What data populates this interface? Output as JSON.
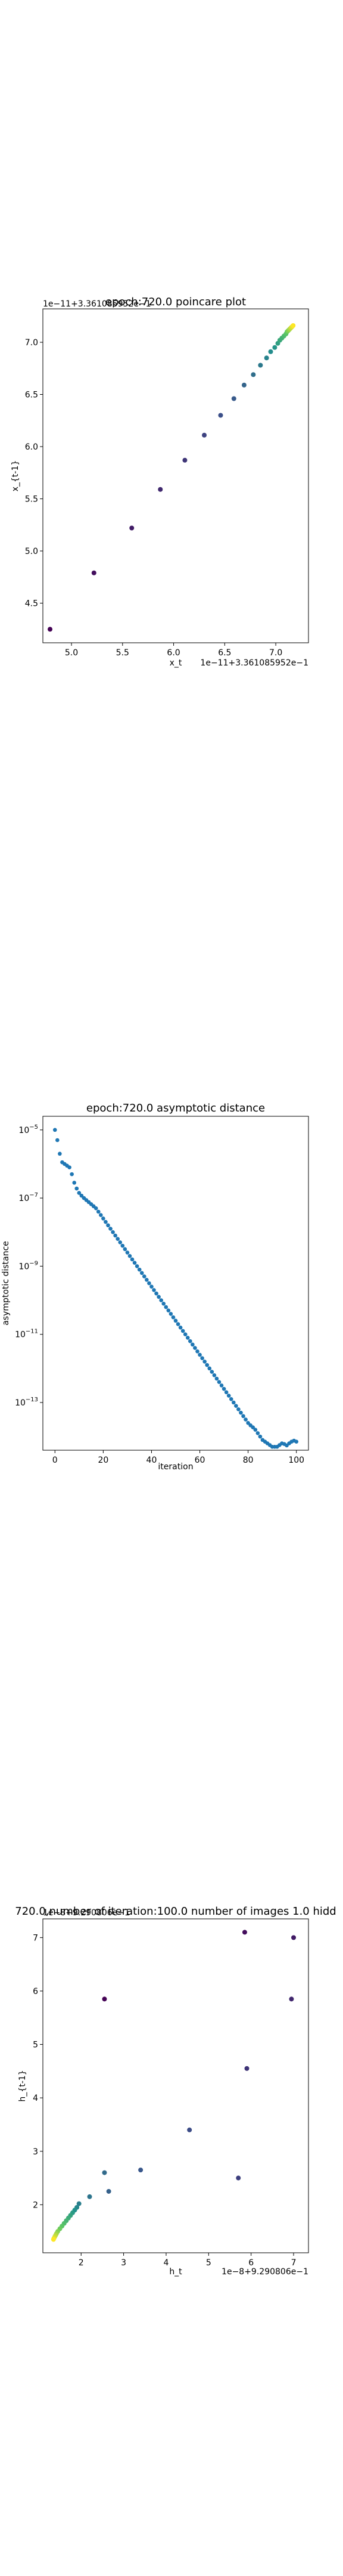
{
  "chart_data": [
    {
      "type": "scatter",
      "title": "epoch:720.0 poincare plot",
      "xlabel": "x_t",
      "ylabel": "x_{t-1}",
      "x_offset_text": "1e−11+3.361085952e−1",
      "y_offset_text": "1e−11+3.361085952e−1",
      "x_ticks": [
        "5.0",
        "5.5",
        "6.0",
        "6.5",
        "7.0"
      ],
      "y_ticks": [
        "4.5",
        "5.0",
        "5.5",
        "6.0",
        "6.5",
        "7.0"
      ],
      "xlim": [
        4.72,
        7.32
      ],
      "ylim": [
        4.12,
        7.32
      ],
      "color_scale": "viridis (by iteration)",
      "x": [
        4.79,
        5.22,
        5.59,
        5.87,
        6.11,
        6.3,
        6.46,
        6.59,
        6.69,
        6.78,
        6.85,
        6.91,
        6.95,
        6.99,
        7.02,
        7.04,
        7.06,
        7.08,
        7.1,
        7.11,
        7.12,
        7.13,
        7.14,
        7.15,
        7.16,
        7.17
      ],
      "y": [
        4.25,
        4.79,
        5.22,
        5.59,
        5.87,
        6.11,
        6.3,
        6.46,
        6.59,
        6.69,
        6.78,
        6.85,
        6.91,
        6.95,
        6.99,
        7.02,
        7.04,
        7.06,
        7.08,
        7.1,
        7.11,
        7.12,
        7.13,
        7.14,
        7.15,
        7.16
      ]
    },
    {
      "type": "scatter",
      "title": "epoch:720.0 asymptotic distance",
      "xlabel": "iteration",
      "ylabel": "asymptotic distance",
      "yscale": "log",
      "x_ticks": [
        "0",
        "20",
        "40",
        "60",
        "80",
        "100"
      ],
      "y_ticks": [
        "10^-5",
        "10^-7",
        "10^-9",
        "10^-11",
        "10^-13"
      ],
      "xlim": [
        -5,
        105
      ],
      "ylim_exp": [
        -14.4,
        -4.6
      ],
      "color": "#1f77b4",
      "x_start": 0,
      "log10_y": [
        -5.0,
        -5.3,
        -5.7,
        -5.95,
        -6.0,
        -6.05,
        -6.1,
        -6.3,
        -6.55,
        -6.72,
        -6.85,
        -6.93,
        -7.0,
        -7.06,
        -7.12,
        -7.18,
        -7.24,
        -7.3,
        -7.4,
        -7.5,
        -7.6,
        -7.7,
        -7.8,
        -7.9,
        -8.0,
        -8.1,
        -8.2,
        -8.3,
        -8.4,
        -8.5,
        -8.6,
        -8.7,
        -8.8,
        -8.9,
        -9.0,
        -9.1,
        -9.2,
        -9.3,
        -9.4,
        -9.5,
        -9.6,
        -9.7,
        -9.8,
        -9.9,
        -10.0,
        -10.1,
        -10.2,
        -10.3,
        -10.4,
        -10.5,
        -10.6,
        -10.7,
        -10.8,
        -10.9,
        -11.0,
        -11.1,
        -11.2,
        -11.3,
        -11.4,
        -11.5,
        -11.6,
        -11.7,
        -11.8,
        -11.9,
        -12.0,
        -12.1,
        -12.2,
        -12.3,
        -12.4,
        -12.5,
        -12.6,
        -12.7,
        -12.8,
        -12.9,
        -13.0,
        -13.1,
        -13.2,
        -13.3,
        -13.4,
        -13.5,
        -13.6,
        -13.67,
        -13.73,
        -13.8,
        -13.9,
        -14.0,
        -14.1,
        -14.15,
        -14.2,
        -14.25,
        -14.3,
        -14.3,
        -14.3,
        -14.25,
        -14.2,
        -14.22,
        -14.26,
        -14.2,
        -14.15,
        -14.12,
        -14.15
      ]
    },
    {
      "type": "scatter",
      "title": "720.0,number of iteration:100.0  number of images 1.0 hidd",
      "xlabel": "h_t",
      "ylabel": "h_{t-1}",
      "x_offset_text": "1e−8+9.290806e−1",
      "y_offset_text": "1e−8+9.290806e−1",
      "x_ticks": [
        "2",
        "3",
        "4",
        "5",
        "6",
        "7"
      ],
      "y_ticks": [
        "2",
        "3",
        "4",
        "5",
        "6",
        "7"
      ],
      "xlim": [
        1.1,
        7.35
      ],
      "ylim": [
        1.1,
        7.35
      ],
      "color_scale": "viridis (by iteration)",
      "x": [
        2.55,
        5.85,
        7.0,
        6.95,
        5.9,
        5.7,
        4.55,
        3.4,
        2.65,
        2.55,
        2.2,
        1.95,
        1.9,
        1.85,
        1.8,
        1.75,
        1.7,
        1.65,
        1.6,
        1.55,
        1.5,
        1.45,
        1.42,
        1.4,
        1.38,
        1.36,
        1.35
      ],
      "y": [
        5.85,
        7.1,
        7.0,
        5.85,
        4.55,
        2.5,
        3.4,
        2.65,
        2.25,
        2.6,
        2.15,
        2.02,
        1.95,
        1.9,
        1.85,
        1.8,
        1.75,
        1.7,
        1.65,
        1.6,
        1.55,
        1.5,
        1.46,
        1.43,
        1.4,
        1.37,
        1.35
      ]
    }
  ]
}
